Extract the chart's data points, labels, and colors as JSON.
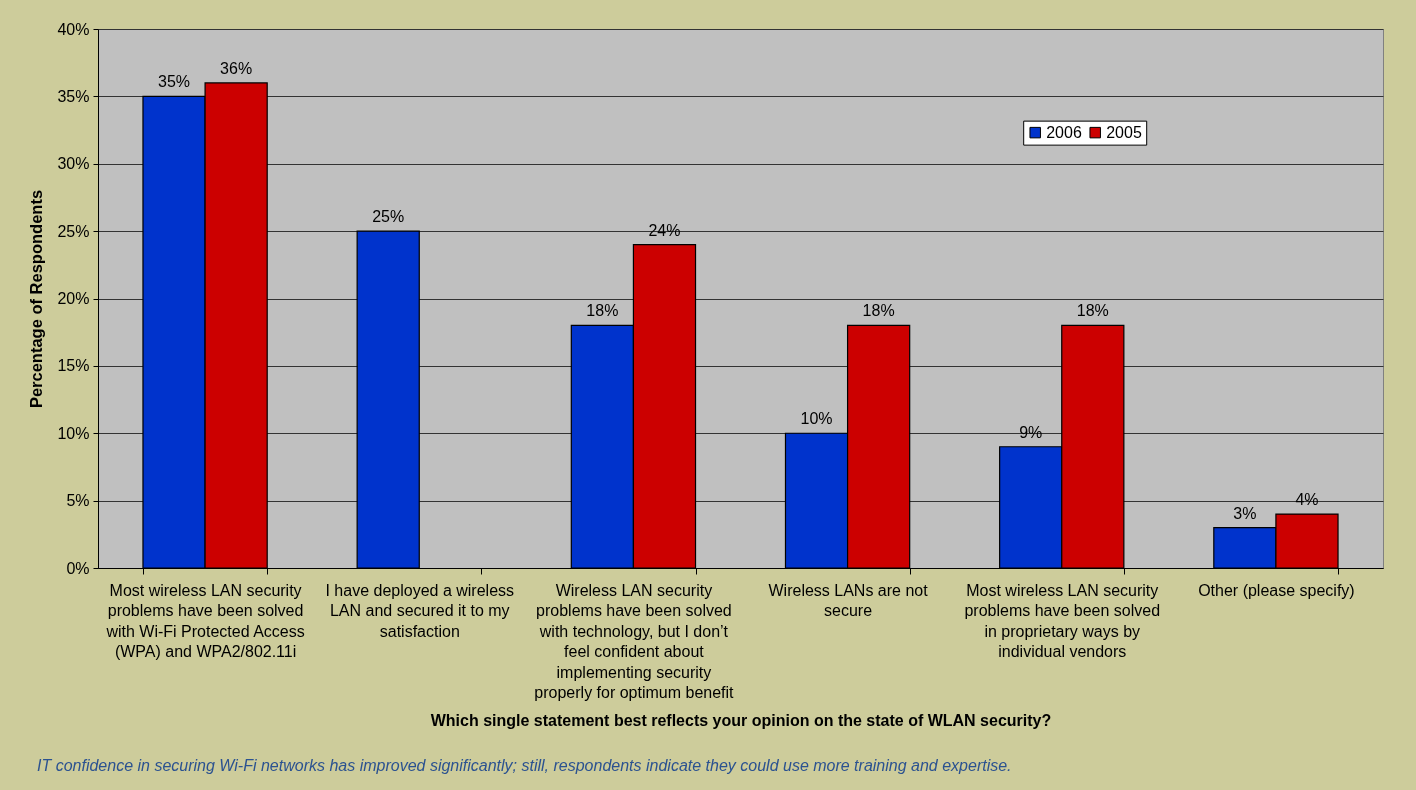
{
  "chart_data": {
    "type": "bar",
    "xlabel": "Which single statement best reflects your opinion on the state of WLAN security?",
    "ylabel": "Percentage of Respondents",
    "categories": [
      "Most wireless LAN security problems have been solved with Wi-Fi Protected Access (WPA) and WPA2/802.11i",
      "I have deployed a wireless LAN and secured it to my satisfaction",
      "Wireless LAN security problems have been solved with technology, but I don’t feel confident about implementing security properly for optimum benefit",
      "Wireless LANs are not secure",
      "Most wireless LAN security problems have been solved in proprietary ways by individual vendors",
      "Other (please specify)"
    ],
    "series": [
      {
        "name": "2006",
        "color": "#0033cc",
        "values": [
          35,
          25,
          18,
          10,
          9,
          3
        ],
        "value_labels": [
          "35%",
          "25%",
          "18%",
          "10%",
          "9%",
          "3%"
        ]
      },
      {
        "name": "2005",
        "color": "#cc0000",
        "values": [
          36,
          null,
          24,
          18,
          18,
          4
        ],
        "value_labels": [
          "36%",
          null,
          "24%",
          "18%",
          "18%",
          "4%"
        ]
      }
    ],
    "ylim": [
      0,
      40
    ],
    "yticks": [
      {
        "value": 0,
        "label": "0%"
      },
      {
        "value": 5,
        "label": "5%"
      },
      {
        "value": 10,
        "label": "10%"
      },
      {
        "value": 15,
        "label": "15%"
      },
      {
        "value": 20,
        "label": "20%"
      },
      {
        "value": 25,
        "label": "25%"
      },
      {
        "value": 30,
        "label": "30%"
      },
      {
        "value": 35,
        "label": "35%"
      },
      {
        "value": 40,
        "label": "40%"
      }
    ],
    "grid": "y",
    "legend": "top right",
    "annotations": [
      "IT confidence in securing Wi-Fi networks has improved significantly; still, respondents indicate they could use more training and expertise."
    ]
  }
}
